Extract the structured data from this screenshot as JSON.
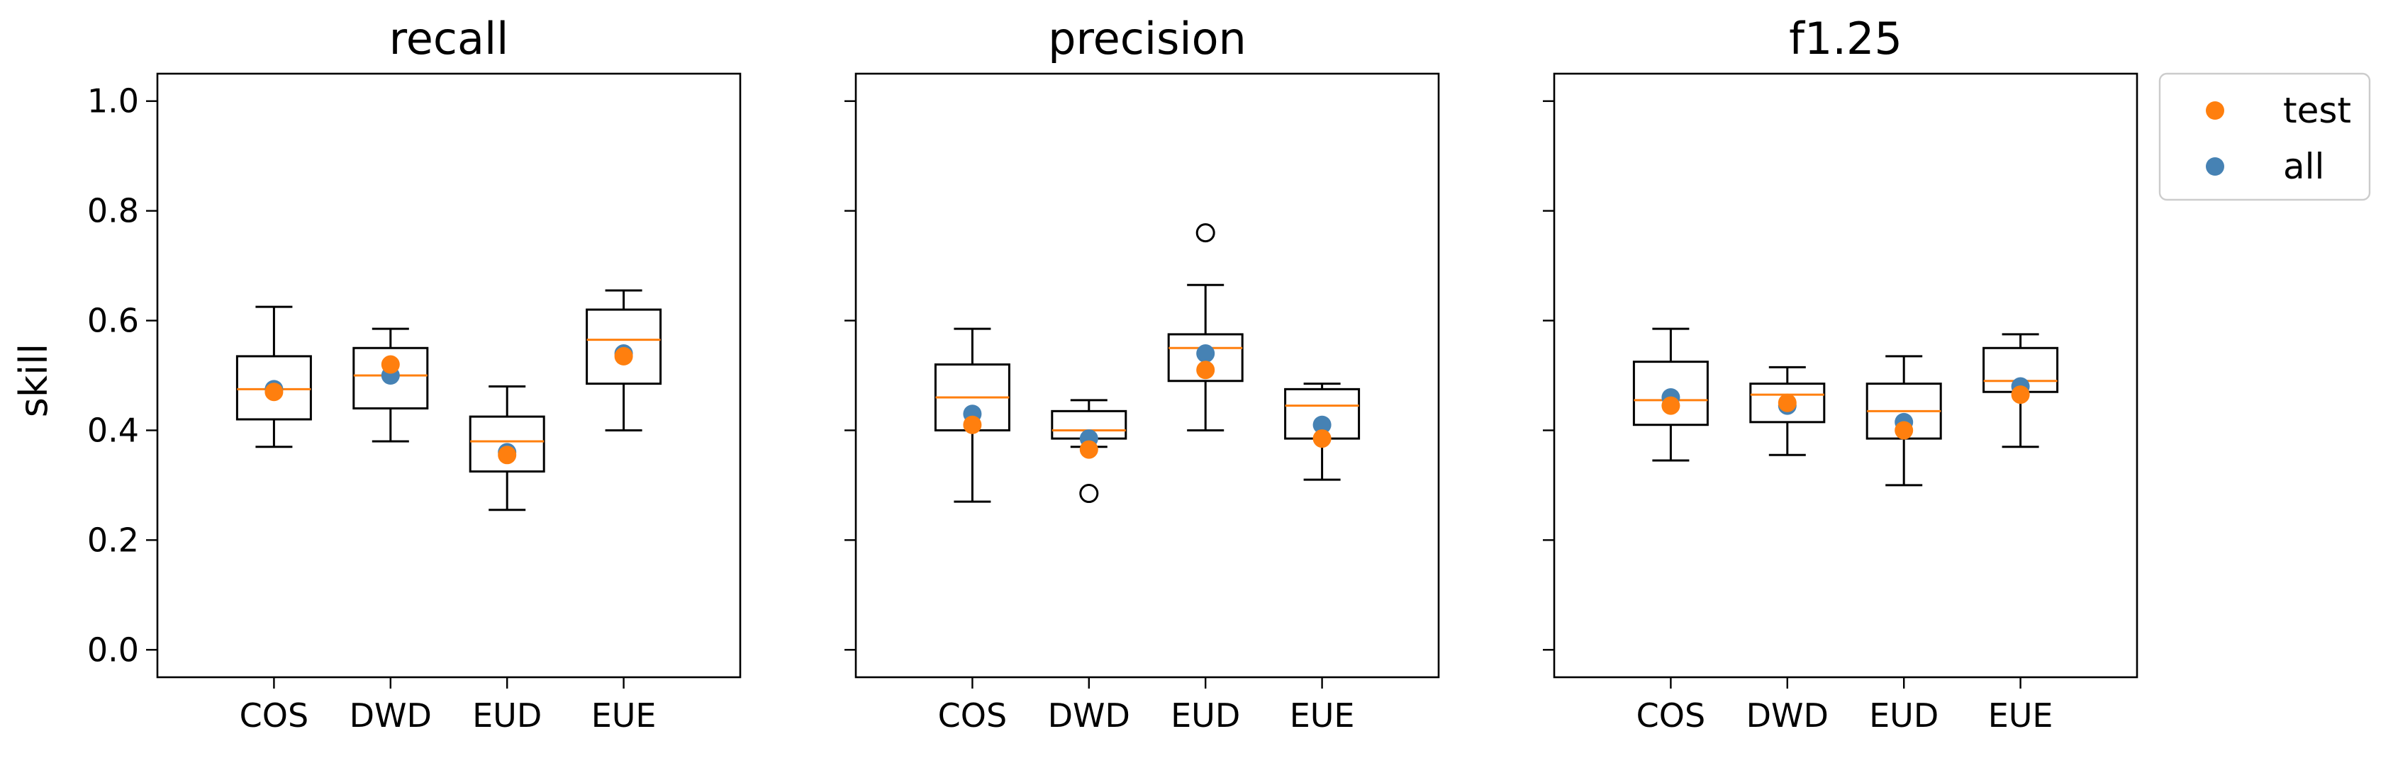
{
  "chart_data": {
    "type": "box",
    "ylabel": "skill",
    "ylim": [
      -0.05,
      1.05
    ],
    "yticks": [
      0.0,
      0.2,
      0.4,
      0.6,
      0.8,
      1.0
    ],
    "categories": [
      "COS",
      "DWD",
      "EUD",
      "EUE"
    ],
    "shared_y": true,
    "legend": {
      "placement": "outside-top-right",
      "entries": [
        {
          "name": "test",
          "color": "#ff7f0e"
        },
        {
          "name": "all",
          "color": "#4682b4"
        }
      ]
    },
    "colors": {
      "median": "#ff7f0e",
      "test": "#ff7f0e",
      "all": "#4682b4",
      "box": "#000000"
    },
    "panels": [
      {
        "title": "recall",
        "boxes": [
          {
            "category": "COS",
            "whisker_low": 0.37,
            "q1": 0.42,
            "median": 0.475,
            "q3": 0.535,
            "whisker_high": 0.625,
            "outliers": []
          },
          {
            "category": "DWD",
            "whisker_low": 0.38,
            "q1": 0.44,
            "median": 0.5,
            "q3": 0.55,
            "whisker_high": 0.585,
            "outliers": []
          },
          {
            "category": "EUD",
            "whisker_low": 0.255,
            "q1": 0.325,
            "median": 0.38,
            "q3": 0.425,
            "whisker_high": 0.48,
            "outliers": []
          },
          {
            "category": "EUE",
            "whisker_low": 0.4,
            "q1": 0.485,
            "median": 0.565,
            "q3": 0.62,
            "whisker_high": 0.655,
            "outliers": []
          }
        ],
        "test": [
          0.47,
          0.52,
          0.355,
          0.535
        ],
        "all": [
          0.475,
          0.5,
          0.36,
          0.54
        ]
      },
      {
        "title": "precision",
        "boxes": [
          {
            "category": "COS",
            "whisker_low": 0.27,
            "q1": 0.4,
            "median": 0.46,
            "q3": 0.52,
            "whisker_high": 0.585,
            "outliers": []
          },
          {
            "category": "DWD",
            "whisker_low": 0.37,
            "q1": 0.385,
            "median": 0.4,
            "q3": 0.435,
            "whisker_high": 0.455,
            "outliers": [
              0.285
            ]
          },
          {
            "category": "EUD",
            "whisker_low": 0.4,
            "q1": 0.49,
            "median": 0.55,
            "q3": 0.575,
            "whisker_high": 0.665,
            "outliers": [
              0.76
            ]
          },
          {
            "category": "EUE",
            "whisker_low": 0.31,
            "q1": 0.385,
            "median": 0.445,
            "q3": 0.475,
            "whisker_high": 0.485,
            "outliers": []
          }
        ],
        "test": [
          0.41,
          0.365,
          0.51,
          0.385
        ],
        "all": [
          0.43,
          0.385,
          0.54,
          0.41
        ]
      },
      {
        "title": "f1.25",
        "boxes": [
          {
            "category": "COS",
            "whisker_low": 0.345,
            "q1": 0.41,
            "median": 0.455,
            "q3": 0.525,
            "whisker_high": 0.585,
            "outliers": []
          },
          {
            "category": "DWD",
            "whisker_low": 0.355,
            "q1": 0.415,
            "median": 0.465,
            "q3": 0.485,
            "whisker_high": 0.515,
            "outliers": []
          },
          {
            "category": "EUD",
            "whisker_low": 0.3,
            "q1": 0.385,
            "median": 0.435,
            "q3": 0.485,
            "whisker_high": 0.535,
            "outliers": []
          },
          {
            "category": "EUE",
            "whisker_low": 0.37,
            "q1": 0.47,
            "median": 0.49,
            "q3": 0.55,
            "whisker_high": 0.575,
            "outliers": []
          }
        ],
        "test": [
          0.445,
          0.45,
          0.4,
          0.465
        ],
        "all": [
          0.46,
          0.445,
          0.415,
          0.48
        ]
      }
    ]
  }
}
